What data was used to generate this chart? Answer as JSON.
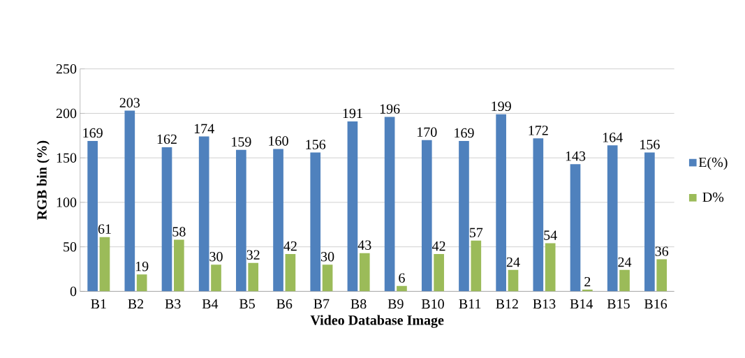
{
  "chart_data": {
    "type": "bar",
    "xlabel": "Video Database Image",
    "ylabel": "RGB bin (%)",
    "categories": [
      "B1",
      "B2",
      "B3",
      "B4",
      "B5",
      "B6",
      "B7",
      "B8",
      "B9",
      "B10",
      "B11",
      "B12",
      "B13",
      "B14",
      "B15",
      "B16"
    ],
    "series": [
      {
        "name": "E(%)",
        "color": "#4f81bd",
        "values": [
          169,
          203,
          162,
          174,
          159,
          160,
          156,
          191,
          196,
          170,
          169,
          199,
          172,
          143,
          164,
          156
        ]
      },
      {
        "name": "D%",
        "color": "#9bbb59",
        "values": [
          61,
          19,
          58,
          30,
          32,
          42,
          30,
          43,
          6,
          42,
          57,
          24,
          54,
          2,
          24,
          36
        ]
      }
    ],
    "ylim": [
      0,
      250
    ],
    "yticks": [
      0,
      50,
      100,
      150,
      200,
      250
    ],
    "grid": "y",
    "legend": "right",
    "data_labels": true
  }
}
